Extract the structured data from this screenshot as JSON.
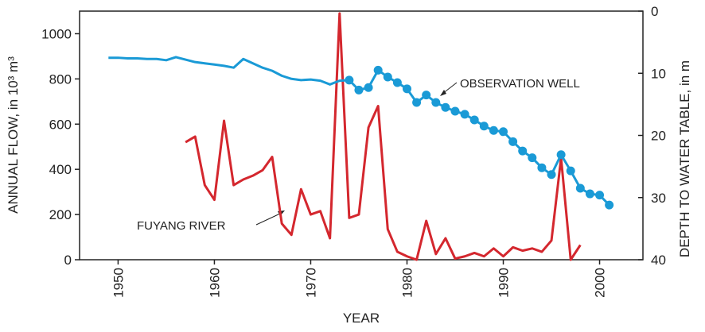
{
  "chart_data": {
    "type": "line",
    "x_label": "YEAR",
    "y_label": "ANNUAL FLOW, in 10³ m³",
    "y2_label": "DEPTH TO WATER TABLE, in m",
    "xlim": [
      1946,
      2004.5
    ],
    "xticks": [
      1950,
      1960,
      1970,
      1980,
      1990,
      2000
    ],
    "ylim": [
      0,
      1100
    ],
    "yticks": [
      0,
      200,
      400,
      600,
      800,
      1000
    ],
    "y2lim": [
      40,
      0
    ],
    "y2ticks": [
      0,
      10,
      20,
      30,
      40
    ],
    "series": [
      {
        "name": "FUYANG RIVER",
        "color": "#d4272e",
        "axis": "y",
        "x": [
          1957,
          1958,
          1959,
          1960,
          1961,
          1962,
          1963,
          1964,
          1965,
          1966,
          1967,
          1968,
          1969,
          1970,
          1971,
          1972,
          1973,
          1974,
          1975,
          1976,
          1977,
          1978,
          1979,
          1980,
          1981,
          1982,
          1983,
          1984,
          1985,
          1986,
          1987,
          1988,
          1989,
          1990,
          1991,
          1992,
          1993,
          1994,
          1995,
          1996,
          1997,
          1998
        ],
        "values": [
          520,
          545,
          330,
          265,
          615,
          330,
          355,
          372,
          396,
          455,
          160,
          110,
          312,
          200,
          215,
          95,
          1090,
          185,
          200,
          585,
          680,
          135,
          35,
          15,
          0,
          172,
          25,
          95,
          5,
          15,
          30,
          15,
          50,
          15,
          55,
          40,
          50,
          35,
          85,
          450,
          0,
          65
        ]
      },
      {
        "name": "OBSERVATION WELL",
        "color": "#1a9ad6",
        "axis": "y2",
        "marker_from_x": 1974,
        "x": [
          1949,
          1950,
          1951,
          1952,
          1953,
          1954,
          1955,
          1956,
          1957,
          1958,
          1959,
          1960,
          1961,
          1962,
          1963,
          1964,
          1965,
          1966,
          1967,
          1968,
          1969,
          1970,
          1971,
          1972,
          1973,
          1974,
          1975,
          1976,
          1977,
          1978,
          1979,
          1980,
          1981,
          1982,
          1983,
          1984,
          1985,
          1986,
          1987,
          1988,
          1989,
          1990,
          1991,
          1992,
          1993,
          1994,
          1995,
          1996,
          1997,
          1998,
          1999,
          2000,
          2001
        ],
        "values": [
          7.5,
          7.5,
          7.6,
          7.6,
          7.7,
          7.7,
          7.9,
          7.4,
          7.8,
          8.2,
          8.4,
          8.6,
          8.8,
          9.1,
          7.7,
          8.4,
          9.1,
          9.6,
          10.4,
          10.9,
          11.1,
          11.0,
          11.2,
          11.8,
          11.2,
          11.1,
          12.7,
          12.3,
          9.5,
          10.6,
          11.5,
          12.5,
          14.7,
          13.5,
          14.7,
          15.5,
          16.1,
          16.6,
          17.5,
          18.5,
          19.2,
          19.4,
          21.0,
          22.5,
          23.6,
          25.2,
          26.3,
          23.1,
          25.7,
          28.5,
          29.4,
          29.6,
          31.2
        ]
      }
    ]
  }
}
